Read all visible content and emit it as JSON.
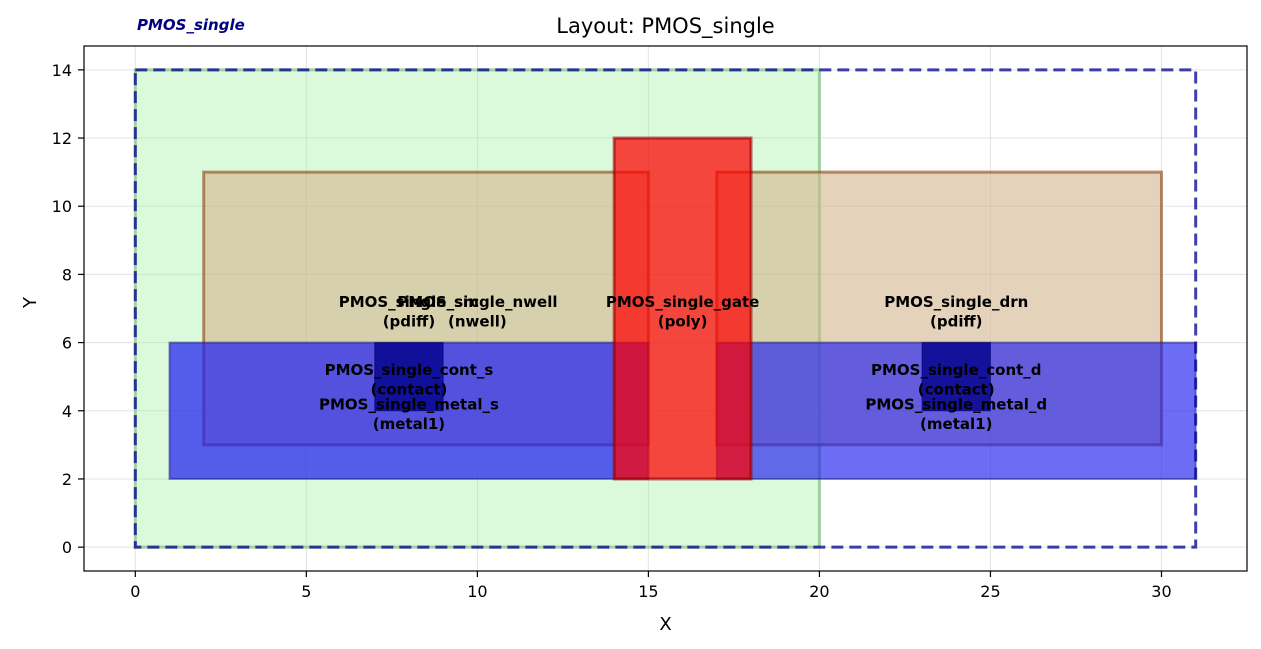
{
  "chart_data": {
    "type": "layout",
    "title": "Layout: PMOS_single",
    "cell_label": "PMOS_single",
    "xlabel": "X",
    "ylabel": "Y",
    "xlim": [
      -1.5,
      32.5
    ],
    "ylim": [
      -0.7,
      14.7
    ],
    "xticks": [
      0,
      5,
      10,
      15,
      20,
      25,
      30
    ],
    "yticks": [
      0,
      2,
      4,
      6,
      8,
      10,
      12,
      14
    ],
    "grid": true,
    "shapes": [
      {
        "name": "PMOS_single_nwell",
        "layer": "nwell",
        "x0": 0,
        "y0": 0,
        "x1": 20,
        "y1": 14,
        "fill": "#90ee90",
        "fill_opacity": 0.32,
        "stroke": "#8fc98f",
        "stroke_opacity": 0.8,
        "stroke_width": 3
      },
      {
        "name": "PMOS_single_src",
        "layer": "pdiff",
        "x0": 2,
        "y0": 3,
        "x1": 15,
        "y1": 11,
        "fill": "#d2b48c",
        "fill_opacity": 0.6,
        "stroke": "#8b4513",
        "stroke_opacity": 0.6,
        "stroke_width": 3
      },
      {
        "name": "PMOS_single_drn",
        "layer": "pdiff",
        "x0": 17,
        "y0": 3,
        "x1": 30,
        "y1": 11,
        "fill": "#d2b48c",
        "fill_opacity": 0.6,
        "stroke": "#8b4513",
        "stroke_opacity": 0.6,
        "stroke_width": 3
      },
      {
        "name": "PMOS_single_metal_s",
        "layer": "metal1",
        "x0": 1,
        "y0": 2,
        "x1": 15,
        "y1": 6,
        "fill": "#2020f0",
        "fill_opacity": 0.72,
        "stroke": "#1a1a80",
        "stroke_opacity": 0.5,
        "stroke_width": 2
      },
      {
        "name": "PMOS_single_metal_d",
        "layer": "metal1",
        "x0": 17,
        "y0": 2,
        "x1": 31,
        "y1": 6,
        "fill": "#2020f0",
        "fill_opacity": 0.66,
        "stroke": "#1a1a80",
        "stroke_opacity": 0.5,
        "stroke_width": 2
      },
      {
        "name": "PMOS_single_cont_s",
        "layer": "contact",
        "x0": 7,
        "y0": 4,
        "x1": 9,
        "y1": 6,
        "fill": "#00008b",
        "fill_opacity": 0.8,
        "stroke": "#00006b",
        "stroke_opacity": 0.6,
        "stroke_width": 1
      },
      {
        "name": "PMOS_single_cont_d",
        "layer": "contact",
        "x0": 23,
        "y0": 4,
        "x1": 25,
        "y1": 6,
        "fill": "#00008b",
        "fill_opacity": 0.8,
        "stroke": "#00006b",
        "stroke_opacity": 0.6,
        "stroke_width": 1
      },
      {
        "name": "PMOS_single_gate",
        "layer": "poly",
        "x0": 14,
        "y0": 2,
        "x1": 18,
        "y1": 12,
        "fill": "#ff0000",
        "fill_opacity": 0.72,
        "stroke": "#8b0000",
        "stroke_opacity": 0.6,
        "stroke_width": 3
      }
    ],
    "bounding_box": {
      "x0": 0,
      "y0": 0,
      "x1": 31,
      "y1": 14,
      "stroke": "#00008b",
      "dashed": true
    },
    "labels": [
      {
        "line1": "PMOS_single_src",
        "line2": "(pdiff)",
        "x": 8.0,
        "y": 7.0
      },
      {
        "line1": "PMOS_single_nwell",
        "line2": "(nwell)",
        "x": 10.0,
        "y": 7.0
      },
      {
        "line1": "PMOS_single_gate",
        "line2": "(poly)",
        "x": 16.0,
        "y": 7.0
      },
      {
        "line1": "PMOS_single_drn",
        "line2": "(pdiff)",
        "x": 24.0,
        "y": 7.0
      },
      {
        "line1": "PMOS_single_cont_s",
        "line2": "(contact)",
        "x": 8.0,
        "y": 5.0
      },
      {
        "line1": "PMOS_single_metal_s",
        "line2": "(metal1)",
        "x": 8.0,
        "y": 4.0
      },
      {
        "line1": "PMOS_single_cont_d",
        "line2": "(contact)",
        "x": 24.0,
        "y": 5.0
      },
      {
        "line1": "PMOS_single_metal_d",
        "line2": "(metal1)",
        "x": 24.0,
        "y": 4.0
      }
    ]
  }
}
